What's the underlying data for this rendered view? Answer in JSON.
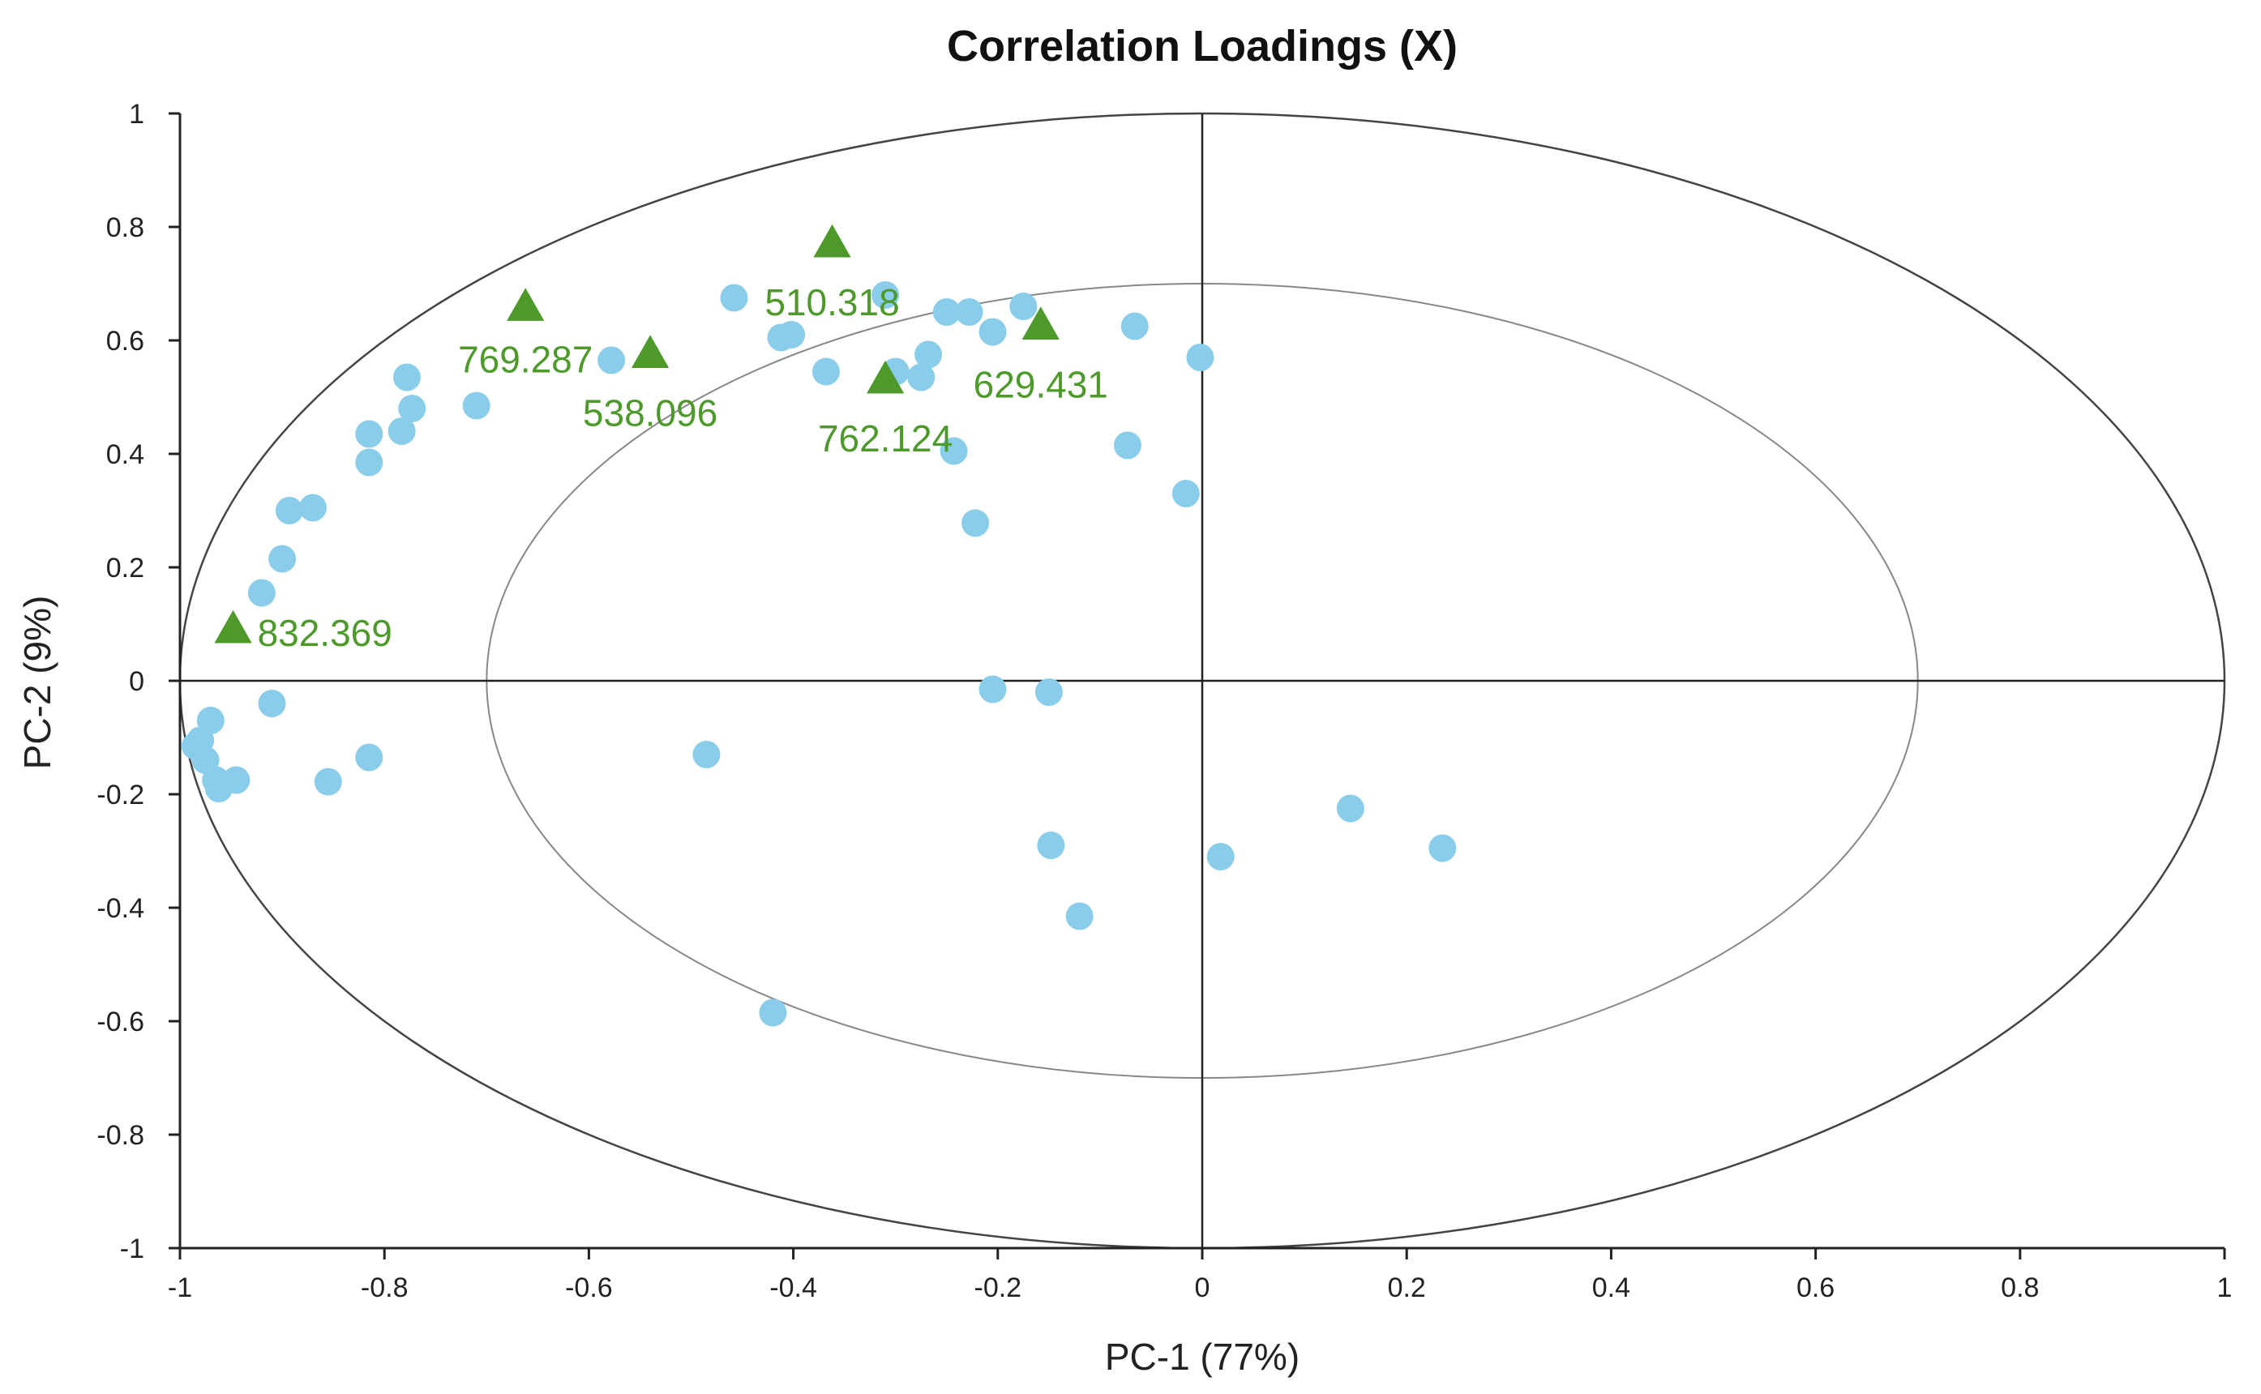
{
  "chart_data": {
    "type": "scatter",
    "title": "Correlation Loadings (X)",
    "xlabel": "PC-1 (77%)",
    "ylabel": "PC-2 (9%)",
    "xlim": [
      -1,
      1
    ],
    "ylim": [
      -1,
      1
    ],
    "x_ticks": [
      -1,
      -0.8,
      -0.6,
      -0.4,
      -0.2,
      0,
      0.2,
      0.4,
      0.6,
      0.8,
      1
    ],
    "y_ticks": [
      -1,
      -0.8,
      -0.6,
      -0.4,
      -0.2,
      0,
      0.2,
      0.4,
      0.6,
      0.8,
      1
    ],
    "x_tick_labels": [
      "-1",
      "-0.8",
      "-0.6",
      "-0.4",
      "-0.2",
      "0",
      "0.2",
      "0.4",
      "0.6",
      "0.8",
      "1"
    ],
    "y_tick_labels": [
      "-1",
      "-0.8",
      "-0.6",
      "-0.4",
      "-0.2",
      "0",
      "0.2",
      "0.4",
      "0.6",
      "0.8",
      "1"
    ],
    "reference_ellipses": [
      {
        "name": "outer-ellipse",
        "radius": 1.0
      },
      {
        "name": "inner-ellipse",
        "radius": 0.7
      }
    ],
    "colors": {
      "circle_points": "#89cdea",
      "triangle_points": "#4d9a2a",
      "label_text": "#4d9a2a",
      "axis": "#222222",
      "ellipse_outer": "#444444",
      "ellipse_inner": "#888888"
    },
    "series": [
      {
        "name": "variables",
        "marker": "circle",
        "points": [
          {
            "x": -0.985,
            "y": -0.115
          },
          {
            "x": -0.98,
            "y": -0.105
          },
          {
            "x": -0.975,
            "y": -0.14
          },
          {
            "x": -0.97,
            "y": -0.07
          },
          {
            "x": -0.965,
            "y": -0.175
          },
          {
            "x": -0.962,
            "y": -0.19
          },
          {
            "x": -0.945,
            "y": -0.175
          },
          {
            "x": -0.91,
            "y": -0.04
          },
          {
            "x": -0.855,
            "y": -0.178
          },
          {
            "x": -0.815,
            "y": -0.135
          },
          {
            "x": -0.92,
            "y": 0.155
          },
          {
            "x": -0.9,
            "y": 0.215
          },
          {
            "x": -0.893,
            "y": 0.3
          },
          {
            "x": -0.87,
            "y": 0.305
          },
          {
            "x": -0.815,
            "y": 0.435
          },
          {
            "x": -0.815,
            "y": 0.385
          },
          {
            "x": -0.783,
            "y": 0.44
          },
          {
            "x": -0.778,
            "y": 0.535
          },
          {
            "x": -0.773,
            "y": 0.48
          },
          {
            "x": -0.71,
            "y": 0.485
          },
          {
            "x": -0.578,
            "y": 0.565
          },
          {
            "x": -0.458,
            "y": 0.675
          },
          {
            "x": -0.412,
            "y": 0.605
          },
          {
            "x": -0.402,
            "y": 0.61
          },
          {
            "x": -0.368,
            "y": 0.545
          },
          {
            "x": -0.31,
            "y": 0.68
          },
          {
            "x": -0.3,
            "y": 0.545
          },
          {
            "x": -0.275,
            "y": 0.535
          },
          {
            "x": -0.268,
            "y": 0.575
          },
          {
            "x": -0.25,
            "y": 0.65
          },
          {
            "x": -0.243,
            "y": 0.405
          },
          {
            "x": -0.228,
            "y": 0.65
          },
          {
            "x": -0.222,
            "y": 0.278
          },
          {
            "x": -0.205,
            "y": 0.615
          },
          {
            "x": -0.175,
            "y": 0.66
          },
          {
            "x": -0.066,
            "y": 0.625
          },
          {
            "x": -0.073,
            "y": 0.415
          },
          {
            "x": -0.002,
            "y": 0.57
          },
          {
            "x": -0.016,
            "y": 0.33
          },
          {
            "x": -0.205,
            "y": -0.015
          },
          {
            "x": -0.15,
            "y": -0.02
          },
          {
            "x": -0.485,
            "y": -0.13
          },
          {
            "x": -0.148,
            "y": -0.29
          },
          {
            "x": -0.12,
            "y": -0.415
          },
          {
            "x": -0.42,
            "y": -0.585
          },
          {
            "x": 0.018,
            "y": -0.31
          },
          {
            "x": 0.145,
            "y": -0.225
          },
          {
            "x": 0.235,
            "y": -0.295
          }
        ]
      },
      {
        "name": "labeled-variables",
        "marker": "triangle",
        "points": [
          {
            "x": -0.948,
            "y": 0.09,
            "label": "832.369"
          },
          {
            "x": -0.662,
            "y": 0.658,
            "label": "769.287"
          },
          {
            "x": -0.54,
            "y": 0.575,
            "label": "538.096"
          },
          {
            "x": -0.362,
            "y": 0.77,
            "label": "510.318"
          },
          {
            "x": -0.31,
            "y": 0.53,
            "label": "762.124"
          },
          {
            "x": -0.158,
            "y": 0.625,
            "label": "629.431"
          }
        ]
      }
    ]
  }
}
